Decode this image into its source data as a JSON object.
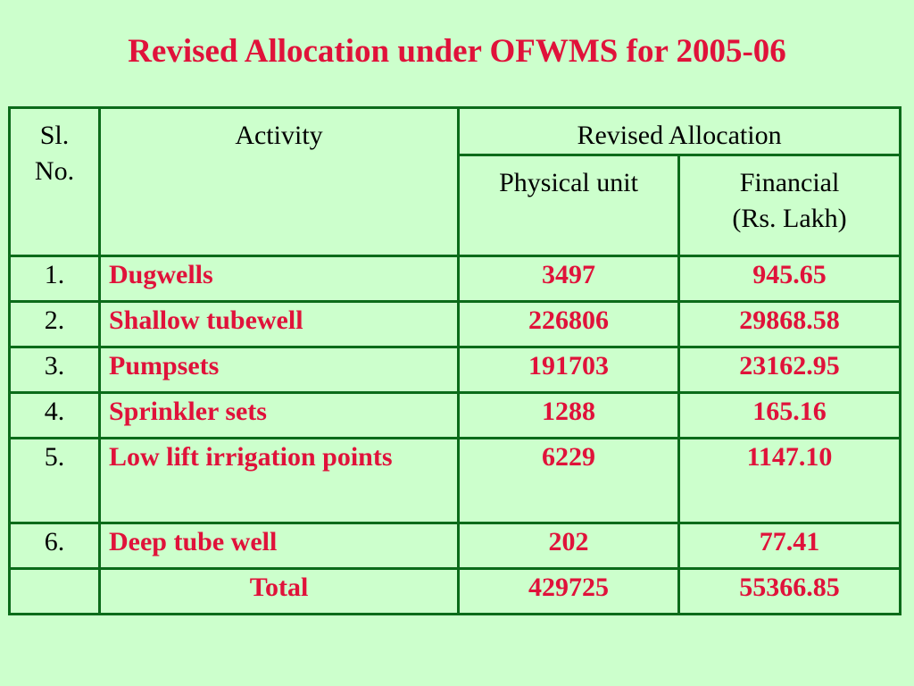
{
  "title": "Revised Allocation under OFWMS for 2005-06",
  "table": {
    "headers": {
      "sl_no": "Sl. No.",
      "activity": "Activity",
      "revised_allocation": "Revised Allocation",
      "physical_unit": "Physical unit",
      "financial_line1": "Financial",
      "financial_line2": "(Rs. Lakh)"
    },
    "rows": [
      {
        "sl": "1.",
        "activity": "Dugwells",
        "physical": "3497",
        "financial": "945.65"
      },
      {
        "sl": "2.",
        "activity": "Shallow tubewell",
        "physical": "226806",
        "financial": "29868.58"
      },
      {
        "sl": "3.",
        "activity": "Pumpsets",
        "physical": "191703",
        "financial": "23162.95"
      },
      {
        "sl": "4.",
        "activity": "Sprinkler sets",
        "physical": "1288",
        "financial": "165.16"
      },
      {
        "sl": "5.",
        "activity": "Low lift irrigation points",
        "physical": "6229",
        "financial": "1147.10"
      },
      {
        "sl": "6.",
        "activity": "Deep tube well",
        "physical": "202",
        "financial": "77.41"
      }
    ],
    "total": {
      "label": "Total",
      "physical": "429725",
      "financial": "55366.85"
    }
  },
  "colors": {
    "background": "#ccffcc",
    "accent_red": "#e0123a",
    "border_green": "#0b6b1a"
  }
}
